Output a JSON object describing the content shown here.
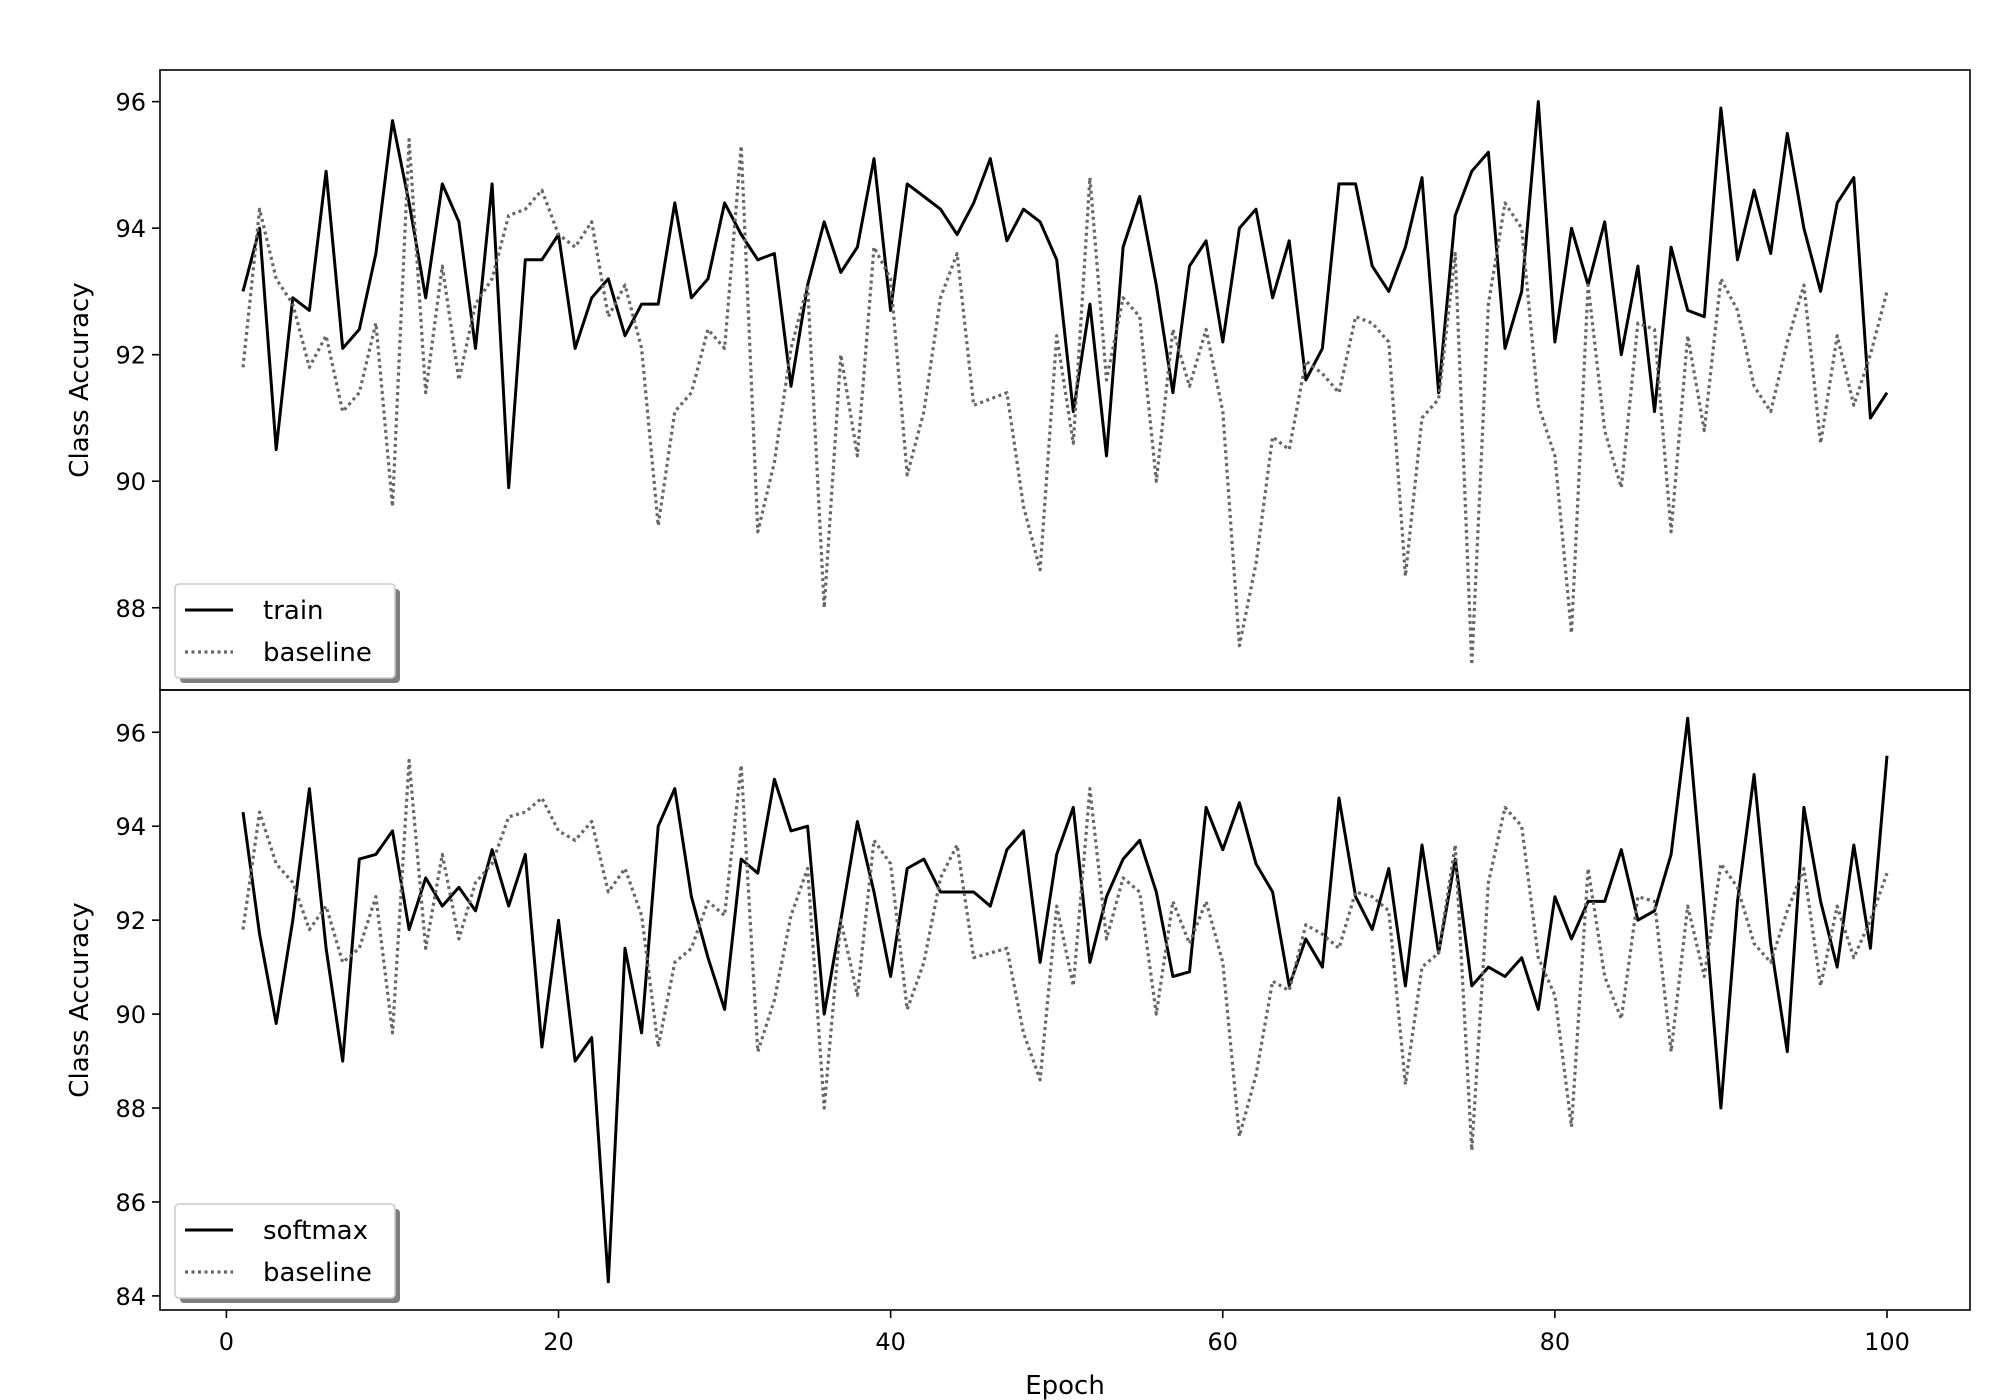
{
  "chart_data": [
    {
      "type": "line",
      "ylabel": "Class Accuracy",
      "xlabel": "",
      "xlim": [
        -4,
        105
      ],
      "ylim": [
        86.7,
        96.5
      ],
      "yticks": [
        88,
        90,
        92,
        94,
        96
      ],
      "xticks": [],
      "legend_position": "bottom-left",
      "series": [
        {
          "name": "train",
          "style": "solid",
          "color": "#000000",
          "x": [
            1,
            2,
            3,
            4,
            5,
            6,
            7,
            8,
            9,
            10,
            11,
            12,
            13,
            14,
            15,
            16,
            17,
            18,
            19,
            20,
            21,
            22,
            23,
            24,
            25,
            26,
            27,
            28,
            29,
            30,
            31,
            32,
            33,
            34,
            35,
            36,
            37,
            38,
            39,
            40,
            41,
            42,
            43,
            44,
            45,
            46,
            47,
            48,
            49,
            50,
            51,
            52,
            53,
            54,
            55,
            56,
            57,
            58,
            59,
            60,
            61,
            62,
            63,
            64,
            65,
            66,
            67,
            68,
            69,
            70,
            71,
            72,
            73,
            74,
            75,
            76,
            77,
            78,
            79,
            80,
            81,
            82,
            83,
            84,
            85,
            86,
            87,
            88,
            89,
            90,
            91,
            92,
            93,
            94,
            95,
            96,
            97,
            98,
            99,
            100
          ],
          "values": [
            93.0,
            94.0,
            90.5,
            92.9,
            92.7,
            94.9,
            92.1,
            92.4,
            93.6,
            95.7,
            94.4,
            92.9,
            94.7,
            94.1,
            92.1,
            94.7,
            89.9,
            93.5,
            93.5,
            93.9,
            92.1,
            92.9,
            93.2,
            92.3,
            92.8,
            92.8,
            94.4,
            92.9,
            93.2,
            94.4,
            93.9,
            93.5,
            93.6,
            91.5,
            93.1,
            94.1,
            93.3,
            93.7,
            95.1,
            92.7,
            94.7,
            94.5,
            94.3,
            93.9,
            94.4,
            95.1,
            93.8,
            94.3,
            94.1,
            93.5,
            91.1,
            92.8,
            90.4,
            93.7,
            94.5,
            93.1,
            91.4,
            93.4,
            93.8,
            92.2,
            94.0,
            94.3,
            92.9,
            93.8,
            91.6,
            92.1,
            94.7,
            94.7,
            93.4,
            93.0,
            93.7,
            94.8,
            91.4,
            94.2,
            94.9,
            95.2,
            92.1,
            93.0,
            96.0,
            92.2,
            94.0,
            93.1,
            94.1,
            92.0,
            93.4,
            91.1,
            93.7,
            92.7,
            92.6,
            95.9,
            93.5,
            94.6,
            93.6,
            95.5,
            94.0,
            93.0,
            94.4,
            94.8,
            91.0,
            91.4
          ]
        },
        {
          "name": "baseline",
          "style": "dotted",
          "color": "#666666",
          "x": [
            1,
            2,
            3,
            4,
            5,
            6,
            7,
            8,
            9,
            10,
            11,
            12,
            13,
            14,
            15,
            16,
            17,
            18,
            19,
            20,
            21,
            22,
            23,
            24,
            25,
            26,
            27,
            28,
            29,
            30,
            31,
            32,
            33,
            34,
            35,
            36,
            37,
            38,
            39,
            40,
            41,
            42,
            43,
            44,
            45,
            46,
            47,
            48,
            49,
            50,
            51,
            52,
            53,
            54,
            55,
            56,
            57,
            58,
            59,
            60,
            61,
            62,
            63,
            64,
            65,
            66,
            67,
            68,
            69,
            70,
            71,
            72,
            73,
            74,
            75,
            76,
            77,
            78,
            79,
            80,
            81,
            82,
            83,
            84,
            85,
            86,
            87,
            88,
            89,
            90,
            91,
            92,
            93,
            94,
            95,
            96,
            97,
            98,
            99,
            100
          ],
          "values": [
            91.8,
            94.3,
            93.2,
            92.8,
            91.8,
            92.3,
            91.1,
            91.4,
            92.5,
            89.6,
            95.4,
            91.4,
            93.4,
            91.6,
            92.8,
            93.2,
            94.2,
            94.3,
            94.6,
            93.9,
            93.7,
            94.1,
            92.6,
            93.1,
            92.1,
            89.3,
            91.1,
            91.4,
            92.4,
            92.1,
            95.3,
            89.2,
            90.3,
            92.1,
            93.1,
            88.0,
            92.0,
            90.4,
            93.7,
            93.2,
            90.1,
            91.1,
            92.9,
            93.6,
            91.2,
            91.3,
            91.4,
            89.6,
            88.6,
            92.3,
            90.6,
            94.8,
            91.6,
            92.9,
            92.6,
            90.0,
            92.4,
            91.5,
            92.4,
            91.1,
            87.4,
            88.7,
            90.7,
            90.5,
            91.9,
            91.7,
            91.4,
            92.6,
            92.5,
            92.2,
            88.5,
            91.0,
            91.3,
            93.6,
            87.1,
            92.8,
            94.4,
            94.0,
            91.2,
            90.4,
            87.6,
            93.1,
            90.8,
            89.9,
            92.5,
            92.4,
            89.2,
            92.3,
            90.8,
            93.2,
            92.7,
            91.5,
            91.1,
            92.2,
            93.1,
            90.6,
            92.3,
            91.2,
            92.0,
            93.0
          ]
        }
      ]
    },
    {
      "type": "line",
      "ylabel": "Class Accuracy",
      "xlabel": "Epoch",
      "xlim": [
        -4,
        105
      ],
      "ylim": [
        83.7,
        96.9
      ],
      "yticks": [
        84,
        86,
        88,
        90,
        92,
        94,
        96
      ],
      "xticks": [
        0,
        20,
        40,
        60,
        80,
        100
      ],
      "legend_position": "bottom-left",
      "series": [
        {
          "name": "softmax",
          "style": "solid",
          "color": "#000000",
          "x": [
            1,
            2,
            3,
            4,
            5,
            6,
            7,
            8,
            9,
            10,
            11,
            12,
            13,
            14,
            15,
            16,
            17,
            18,
            19,
            20,
            21,
            22,
            23,
            24,
            25,
            26,
            27,
            28,
            29,
            30,
            31,
            32,
            33,
            34,
            35,
            36,
            37,
            38,
            39,
            40,
            41,
            42,
            43,
            44,
            45,
            46,
            47,
            48,
            49,
            50,
            51,
            52,
            53,
            54,
            55,
            56,
            57,
            58,
            59,
            60,
            61,
            62,
            63,
            64,
            65,
            66,
            67,
            68,
            69,
            70,
            71,
            72,
            73,
            74,
            75,
            76,
            77,
            78,
            79,
            80,
            81,
            82,
            83,
            84,
            85,
            86,
            87,
            88,
            89,
            90,
            91,
            92,
            93,
            94,
            95,
            96,
            97,
            98,
            99,
            100
          ],
          "values": [
            94.3,
            91.7,
            89.8,
            92.0,
            94.8,
            91.4,
            89.0,
            93.3,
            93.4,
            93.9,
            91.8,
            92.9,
            92.3,
            92.7,
            92.2,
            93.5,
            92.3,
            93.4,
            89.3,
            92.0,
            89.0,
            89.5,
            84.3,
            91.4,
            89.6,
            94.0,
            94.8,
            92.5,
            91.2,
            90.1,
            93.3,
            93.0,
            95.0,
            93.9,
            94.0,
            90.0,
            92.0,
            94.1,
            92.6,
            90.8,
            93.1,
            93.3,
            92.6,
            92.6,
            92.6,
            92.3,
            93.5,
            93.9,
            91.1,
            93.4,
            94.4,
            91.1,
            92.5,
            93.3,
            93.7,
            92.6,
            90.8,
            90.9,
            94.4,
            93.5,
            94.5,
            93.2,
            92.6,
            90.6,
            91.6,
            91.0,
            94.6,
            92.5,
            91.8,
            93.1,
            90.6,
            93.6,
            91.3,
            93.3,
            90.6,
            91.0,
            90.8,
            91.2,
            90.1,
            92.5,
            91.6,
            92.4,
            92.4,
            93.5,
            92.0,
            92.2,
            93.4,
            96.3,
            92.3,
            88.0,
            92.4,
            95.1,
            91.5,
            89.2,
            94.4,
            92.4,
            91.0,
            93.6,
            91.4,
            95.5
          ]
        },
        {
          "name": "baseline",
          "style": "dotted",
          "color": "#666666",
          "x": [
            1,
            2,
            3,
            4,
            5,
            6,
            7,
            8,
            9,
            10,
            11,
            12,
            13,
            14,
            15,
            16,
            17,
            18,
            19,
            20,
            21,
            22,
            23,
            24,
            25,
            26,
            27,
            28,
            29,
            30,
            31,
            32,
            33,
            34,
            35,
            36,
            37,
            38,
            39,
            40,
            41,
            42,
            43,
            44,
            45,
            46,
            47,
            48,
            49,
            50,
            51,
            52,
            53,
            54,
            55,
            56,
            57,
            58,
            59,
            60,
            61,
            62,
            63,
            64,
            65,
            66,
            67,
            68,
            69,
            70,
            71,
            72,
            73,
            74,
            75,
            76,
            77,
            78,
            79,
            80,
            81,
            82,
            83,
            84,
            85,
            86,
            87,
            88,
            89,
            90,
            91,
            92,
            93,
            94,
            95,
            96,
            97,
            98,
            99,
            100
          ],
          "values": [
            91.8,
            94.3,
            93.2,
            92.8,
            91.8,
            92.3,
            91.1,
            91.4,
            92.5,
            89.6,
            95.4,
            91.4,
            93.4,
            91.6,
            92.8,
            93.2,
            94.2,
            94.3,
            94.6,
            93.9,
            93.7,
            94.1,
            92.6,
            93.1,
            92.1,
            89.3,
            91.1,
            91.4,
            92.4,
            92.1,
            95.3,
            89.2,
            90.3,
            92.1,
            93.1,
            88.0,
            92.0,
            90.4,
            93.7,
            93.2,
            90.1,
            91.1,
            92.9,
            93.6,
            91.2,
            91.3,
            91.4,
            89.6,
            88.6,
            92.3,
            90.6,
            94.8,
            91.6,
            92.9,
            92.6,
            90.0,
            92.4,
            91.5,
            92.4,
            91.1,
            87.4,
            88.7,
            90.7,
            90.5,
            91.9,
            91.7,
            91.4,
            92.6,
            92.5,
            92.2,
            88.5,
            91.0,
            91.3,
            93.6,
            87.1,
            92.8,
            94.4,
            94.0,
            91.2,
            90.4,
            87.6,
            93.1,
            90.8,
            89.9,
            92.5,
            92.4,
            89.2,
            92.3,
            90.8,
            93.2,
            92.7,
            91.5,
            91.1,
            92.2,
            93.1,
            90.6,
            92.3,
            91.2,
            92.0,
            93.0
          ]
        }
      ]
    }
  ]
}
